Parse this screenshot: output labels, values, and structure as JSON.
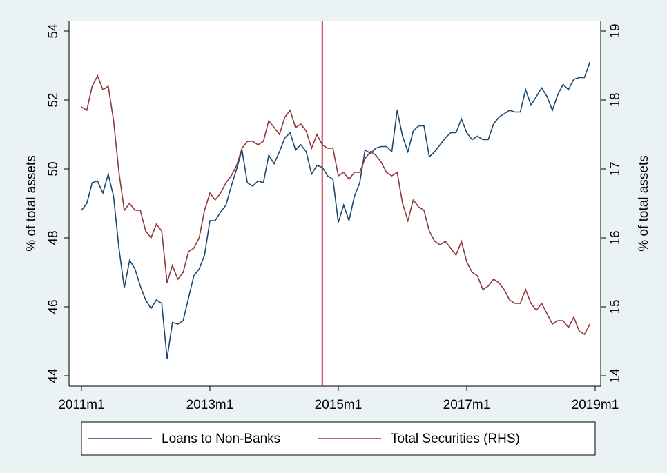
{
  "chart_data": {
    "type": "line",
    "x": [
      612,
      613,
      614,
      615,
      616,
      617,
      618,
      619,
      620,
      621,
      622,
      623,
      624,
      625,
      626,
      627,
      628,
      629,
      630,
      631,
      632,
      633,
      634,
      635,
      636,
      637,
      638,
      639,
      640,
      641,
      642,
      643,
      644,
      645,
      646,
      647,
      648,
      649,
      650,
      651,
      652,
      653,
      654,
      655,
      656,
      657,
      658,
      659,
      660,
      661,
      662,
      663,
      664,
      665,
      666,
      667,
      668,
      669,
      670,
      671,
      672,
      673,
      674,
      675,
      676,
      677,
      678,
      679,
      680,
      681,
      682,
      683,
      684,
      685,
      686,
      687,
      688,
      689,
      690,
      691,
      692,
      693,
      694,
      695,
      696,
      697,
      698,
      699,
      700,
      701,
      702,
      703,
      704,
      705,
      706,
      707
    ],
    "xlim": [
      610,
      709
    ],
    "xticks": [
      {
        "value": 612,
        "label": "2011m1"
      },
      {
        "value": 636,
        "label": "2013m1"
      },
      {
        "value": 660,
        "label": "2015m1"
      },
      {
        "value": 684,
        "label": "2017m1"
      },
      {
        "value": 708,
        "label": "2019m1"
      }
    ],
    "ylim": [
      43.7,
      54.3
    ],
    "yticks": [
      44,
      46,
      48,
      50,
      52,
      54
    ],
    "y2lim": [
      13.85,
      19.15
    ],
    "y2ticks": [
      14,
      15,
      16,
      17,
      18,
      19
    ],
    "ylabel": "% of total assets",
    "y2label": "% of total assets",
    "vline": 657,
    "vline_color": "#c8284e",
    "series": [
      {
        "name": "Loans to Non-Banks",
        "color": "#1a476f",
        "values": [
          48.8,
          49.0,
          49.6,
          49.65,
          49.3,
          49.85,
          49.2,
          47.7,
          46.55,
          47.35,
          47.1,
          46.6,
          46.2,
          45.95,
          46.2,
          46.1,
          44.5,
          45.55,
          45.5,
          45.6,
          46.25,
          46.9,
          47.1,
          47.5,
          48.5,
          48.5,
          48.75,
          48.95,
          49.5,
          50.0,
          50.55,
          49.6,
          49.5,
          49.65,
          49.6,
          50.4,
          50.15,
          50.5,
          50.9,
          51.05,
          50.55,
          50.7,
          50.5,
          49.85,
          50.1,
          50.05,
          49.8,
          49.7,
          48.45,
          48.95,
          48.5,
          49.2,
          49.6,
          50.55,
          50.45,
          50.6,
          50.65,
          50.65,
          50.5,
          51.7,
          50.95,
          50.5,
          51.1,
          51.25,
          51.25,
          50.35,
          50.5,
          50.7,
          50.9,
          51.05,
          51.05,
          51.45,
          51.05,
          50.85,
          50.95,
          50.85,
          50.85,
          51.3,
          51.5,
          51.6,
          51.7,
          51.65,
          51.65,
          52.3,
          51.85,
          52.1,
          52.35,
          52.1,
          51.7,
          52.15,
          52.45,
          52.3,
          52.6,
          52.65,
          52.65,
          53.1
        ]
      },
      {
        "name": "Total Securities (RHS)",
        "color": "#90353b",
        "axis": "y2",
        "values": [
          17.9,
          17.85,
          18.2,
          18.35,
          18.15,
          18.2,
          17.7,
          16.95,
          16.4,
          16.5,
          16.4,
          16.4,
          16.1,
          16.0,
          16.2,
          16.1,
          15.35,
          15.6,
          15.4,
          15.5,
          15.8,
          15.85,
          16.0,
          16.4,
          16.65,
          16.55,
          16.65,
          16.8,
          16.9,
          17.05,
          17.3,
          17.4,
          17.4,
          17.35,
          17.4,
          17.7,
          17.6,
          17.5,
          17.75,
          17.85,
          17.6,
          17.65,
          17.55,
          17.3,
          17.5,
          17.35,
          17.3,
          17.3,
          16.9,
          16.95,
          16.85,
          16.95,
          16.95,
          17.15,
          17.25,
          17.2,
          17.1,
          16.95,
          16.9,
          16.95,
          16.5,
          16.25,
          16.55,
          16.45,
          16.4,
          16.1,
          15.95,
          15.9,
          15.95,
          15.85,
          15.75,
          15.95,
          15.65,
          15.5,
          15.45,
          15.25,
          15.3,
          15.4,
          15.35,
          15.25,
          15.1,
          15.05,
          15.05,
          15.25,
          15.05,
          14.95,
          15.05,
          14.9,
          14.75,
          14.8,
          14.8,
          14.7,
          14.85,
          14.65,
          14.6,
          14.75
        ]
      }
    ]
  }
}
